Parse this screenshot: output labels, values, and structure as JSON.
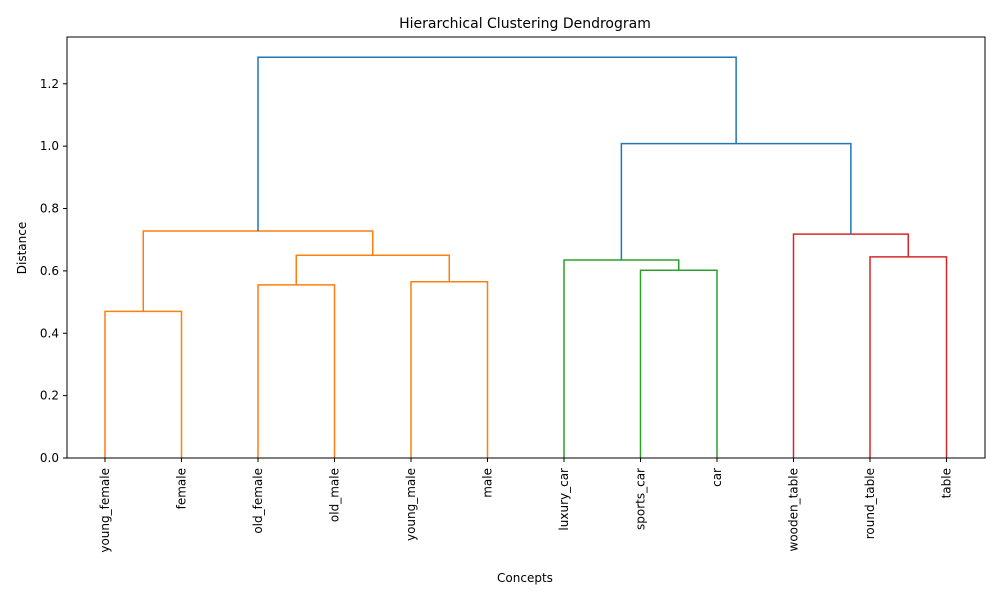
{
  "chart_data": {
    "type": "dendrogram",
    "title": "Hierarchical Clustering Dendrogram",
    "xlabel": "Concepts",
    "ylabel": "Distance",
    "ylim": [
      0,
      1.35
    ],
    "yticks": [
      "0.0",
      "0.2",
      "0.4",
      "0.6",
      "0.8",
      "1.0",
      "1.2"
    ],
    "ytick_values": [
      0,
      0.2,
      0.4,
      0.6,
      0.8,
      1.0,
      1.2
    ],
    "leaves": [
      "young_female",
      "female",
      "old_female",
      "old_male",
      "young_male",
      "male",
      "luxury_car",
      "sports_car",
      "car",
      "wooden_table",
      "round_table",
      "table"
    ],
    "links": [
      {
        "left": 0,
        "right": 1,
        "left_height": 0,
        "right_height": 0,
        "height": 0.47,
        "color": "#ff7f0e"
      },
      {
        "left": 2,
        "right": 3,
        "left_height": 0,
        "right_height": 0,
        "height": 0.555,
        "color": "#ff7f0e"
      },
      {
        "left": 4,
        "right": 5,
        "left_height": 0,
        "right_height": 0,
        "height": 0.565,
        "color": "#ff7f0e"
      },
      {
        "left": 2.5,
        "right": 4.5,
        "left_height": 0.555,
        "right_height": 0.565,
        "height": 0.65,
        "color": "#ff7f0e"
      },
      {
        "left": 0.5,
        "right": 3.5,
        "left_height": 0.47,
        "right_height": 0.65,
        "height": 0.728,
        "color": "#ff7f0e"
      },
      {
        "left": 7,
        "right": 8,
        "left_height": 0,
        "right_height": 0,
        "height": 0.602,
        "color": "#2ca02c"
      },
      {
        "left": 6,
        "right": 7.5,
        "left_height": 0,
        "right_height": 0.602,
        "height": 0.635,
        "color": "#2ca02c"
      },
      {
        "left": 10,
        "right": 11,
        "left_height": 0,
        "right_height": 0,
        "height": 0.645,
        "color": "#d62728"
      },
      {
        "left": 9,
        "right": 10.5,
        "left_height": 0,
        "right_height": 0.645,
        "height": 0.718,
        "color": "#d62728"
      },
      {
        "left": 6.75,
        "right": 9.75,
        "left_height": 0.635,
        "right_height": 0.718,
        "height": 1.008,
        "color": "#1f77b4"
      },
      {
        "left": 2,
        "right": 8.25,
        "left_height": 0.728,
        "right_height": 1.008,
        "height": 1.285,
        "color": "#1f77b4"
      }
    ],
    "grid": false,
    "legend": "none"
  }
}
